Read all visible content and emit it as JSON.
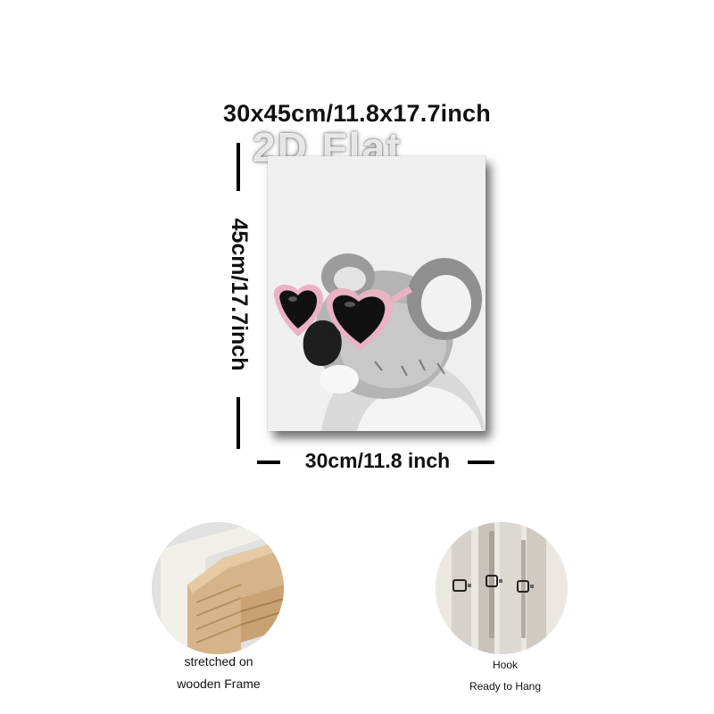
{
  "dimensions": {
    "overall": "30x45cm/11.8x17.7inch",
    "height": "45cm/17.7inch",
    "width": "30cm/11.8 inch"
  },
  "watermark": "2D Flat",
  "artwork": {
    "subject": "koala-with-heart-sunglasses",
    "glasses_color": "#e9b3c4",
    "background_color": "#efefef"
  },
  "features": [
    {
      "icon": "wooden-frame-corner-icon",
      "line1": "stretched on",
      "line2": "wooden Frame"
    },
    {
      "icon": "hook-icon",
      "line1": "Hook",
      "line2": "Ready to Hang"
    }
  ]
}
